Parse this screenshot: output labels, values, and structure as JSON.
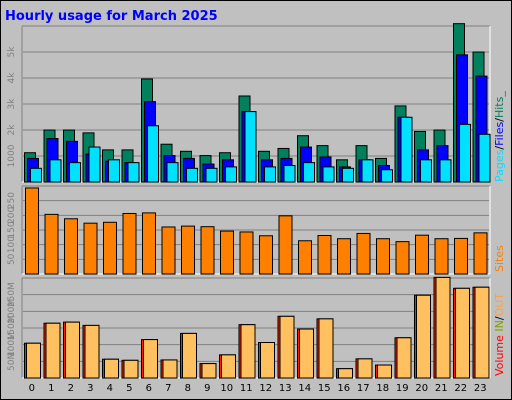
{
  "title": "Hourly usage for March 2025",
  "colors": {
    "pages": "#00e0ff",
    "files": "#0000ff",
    "hits": "#00805c",
    "sites": "#ff8000",
    "kbin": "#ff8000",
    "kbout": "#ffc060",
    "volume_text": "#ff0000",
    "in_text": "#00ff00",
    "out_text": "#ffa040",
    "slash": "#000000"
  },
  "legends": {
    "top": {
      "pages": "Pages",
      "files": "Files",
      "hits": "Hits",
      "sep": "/",
      "trail": "_"
    },
    "middle": {
      "sites": "Sites"
    },
    "bottom": {
      "volume": "Volume",
      "in": "IN",
      "out": "OUT",
      "sep": "/",
      "space": " "
    }
  },
  "chart_data": [
    {
      "type": "bar",
      "title": "Hourly usage for March 2025",
      "categories": [
        "0",
        "1",
        "2",
        "3",
        "4",
        "5",
        "6",
        "7",
        "8",
        "9",
        "10",
        "11",
        "12",
        "13",
        "14",
        "15",
        "16",
        "17",
        "18",
        "19",
        "20",
        "21",
        "22",
        "23"
      ],
      "yticks": [
        "1000",
        "2k",
        "3k",
        "4k",
        "5k"
      ],
      "ylim": [
        0,
        5500
      ],
      "grid": true,
      "series": [
        {
          "name": "Hits",
          "values": [
            1050,
            1850,
            1850,
            1750,
            1150,
            1150,
            3650,
            1350,
            1100,
            950,
            1050,
            3050,
            1100,
            1200,
            1650,
            1300,
            800,
            1300,
            850,
            2700,
            1800,
            1850,
            5600,
            4600
          ]
        },
        {
          "name": "Files",
          "values": [
            850,
            1550,
            1450,
            1000,
            750,
            700,
            2850,
            950,
            850,
            650,
            800,
            2500,
            800,
            850,
            1250,
            900,
            550,
            800,
            600,
            2300,
            1150,
            1300,
            4500,
            3750
          ]
        },
        {
          "name": "Pages",
          "values": [
            500,
            800,
            700,
            1250,
            800,
            700,
            2000,
            700,
            500,
            500,
            550,
            2500,
            550,
            600,
            700,
            550,
            500,
            800,
            450,
            2300,
            800,
            800,
            2050,
            1700
          ]
        }
      ]
    },
    {
      "type": "bar",
      "categories": [
        "0",
        "1",
        "2",
        "3",
        "4",
        "5",
        "6",
        "7",
        "8",
        "9",
        "10",
        "11",
        "12",
        "13",
        "14",
        "15",
        "16",
        "17",
        "18",
        "19",
        "20",
        "21",
        "22",
        "23"
      ],
      "yticks": [
        "50",
        "100",
        "150",
        "200",
        "250"
      ],
      "ylim": [
        0,
        300
      ],
      "grid": true,
      "series": [
        {
          "name": "Sites",
          "values": [
            295,
            205,
            190,
            175,
            178,
            208,
            210,
            162,
            165,
            163,
            148,
            145,
            132,
            200,
            115,
            133,
            122,
            140,
            122,
            112,
            134,
            122,
            123,
            142
          ]
        }
      ]
    },
    {
      "type": "bar",
      "categories": [
        "0",
        "1",
        "2",
        "3",
        "4",
        "5",
        "6",
        "7",
        "8",
        "9",
        "10",
        "11",
        "12",
        "13",
        "14",
        "15",
        "16",
        "17",
        "18",
        "19",
        "20",
        "21",
        "22",
        "23"
      ],
      "yticks": [
        "50M",
        "100M",
        "150M",
        "200M",
        "250M"
      ],
      "ylim": [
        0,
        275
      ],
      "grid": true,
      "series": [
        {
          "name": "KB In",
          "values": [
            0,
            0,
            0,
            0,
            0,
            0,
            0,
            0,
            0,
            0,
            0,
            0,
            0,
            0,
            0,
            0,
            0,
            0,
            0,
            0,
            0,
            0,
            0,
            0
          ]
        },
        {
          "name": "KB Out",
          "values": [
            97,
            152,
            155,
            146,
            53,
            50,
            107,
            51,
            124,
            41,
            65,
            148,
            99,
            171,
            136,
            164,
            27,
            54,
            37,
            112,
            229,
            278,
            248,
            251
          ]
        }
      ]
    }
  ]
}
